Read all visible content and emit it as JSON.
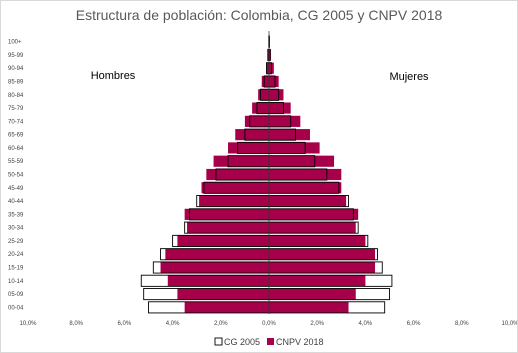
{
  "chart_data": {
    "type": "bar",
    "title": "Estructura de población: Colombia, CG 2005 y CNPV 2018",
    "orientation": "horizontal-pyramid",
    "left_label": "Hombres",
    "right_label": "Mujeres",
    "x_tick_labels": [
      "10,0%",
      "8,0%",
      "6,0%",
      "4,0%",
      "2,0%",
      "0,0%",
      "2,0%",
      "4,0%",
      "6,0%",
      "8,0%",
      "10,0%"
    ],
    "xlim": [
      -10,
      10
    ],
    "grid": false,
    "legend_position": "bottom",
    "categories": [
      "00-04",
      "05-09",
      "10-14",
      "15-19",
      "20-24",
      "25-29",
      "30-34",
      "35-39",
      "40-44",
      "45-49",
      "50-54",
      "55-59",
      "60-64",
      "65-69",
      "70-74",
      "75-79",
      "80-84",
      "85-89",
      "90-94",
      "95-99",
      "100+"
    ],
    "series": [
      {
        "name": "CG 2005",
        "style": "outline",
        "color": "#000000",
        "men": [
          5.0,
          5.2,
          5.3,
          4.8,
          4.5,
          4.0,
          3.5,
          3.3,
          3.0,
          2.7,
          2.2,
          1.7,
          1.3,
          1.0,
          0.8,
          0.5,
          0.35,
          0.2,
          0.1,
          0.05,
          0.01
        ],
        "women": [
          4.8,
          5.0,
          5.1,
          4.7,
          4.5,
          4.1,
          3.7,
          3.5,
          3.3,
          2.9,
          2.4,
          1.9,
          1.5,
          1.1,
          0.9,
          0.6,
          0.4,
          0.25,
          0.1,
          0.05,
          0.02
        ]
      },
      {
        "name": "CNPV 2018",
        "style": "fill",
        "color": "#a50049",
        "men": [
          3.5,
          3.8,
          4.2,
          4.5,
          4.3,
          3.8,
          3.4,
          3.5,
          2.9,
          2.8,
          2.6,
          2.3,
          1.7,
          1.4,
          1.0,
          0.7,
          0.45,
          0.3,
          0.12,
          0.05,
          0.02
        ],
        "women": [
          3.3,
          3.6,
          4.0,
          4.4,
          4.4,
          4.0,
          3.6,
          3.7,
          3.2,
          3.0,
          3.0,
          2.7,
          2.1,
          1.7,
          1.3,
          0.9,
          0.6,
          0.4,
          0.2,
          0.08,
          0.03
        ]
      }
    ]
  }
}
